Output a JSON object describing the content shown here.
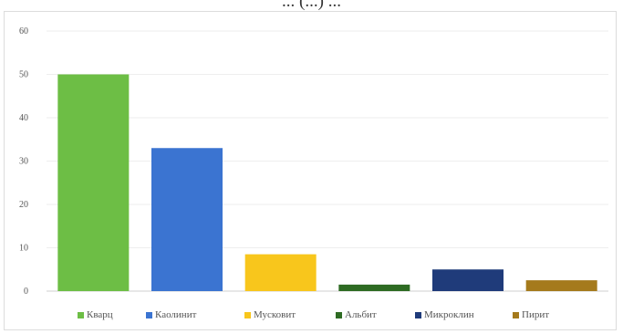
{
  "caption_fragment": "... (...) ...",
  "chart_data": {
    "type": "bar",
    "title": "",
    "xlabel": "",
    "ylabel": "",
    "ylim": [
      0,
      60
    ],
    "yticks": [
      0,
      10,
      20,
      30,
      40,
      50,
      60
    ],
    "grid": true,
    "legend_position": "bottom",
    "categories": [
      "Кварц",
      "Каолинит",
      "Мусковит",
      "Альбит",
      "Микроклин",
      "Пирит"
    ],
    "values": [
      50,
      33,
      8.5,
      1.5,
      5,
      2.5
    ],
    "colors": [
      "#6dbe45",
      "#3b74d1",
      "#f8c61c",
      "#2e6b23",
      "#1f3b7a",
      "#a57a1c"
    ]
  }
}
